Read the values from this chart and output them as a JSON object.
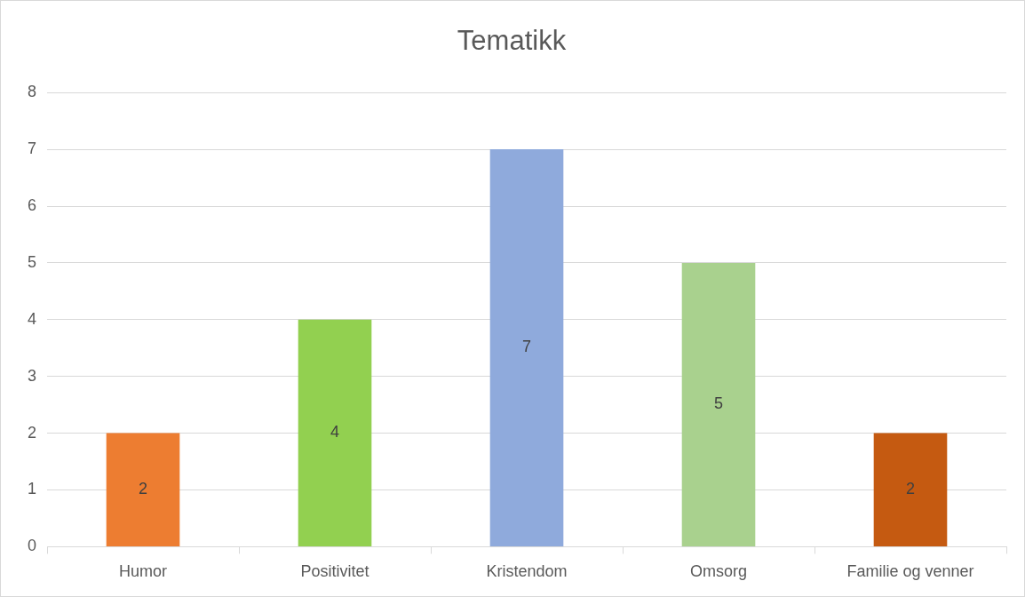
{
  "chart_data": {
    "type": "bar",
    "title": "Tematikk",
    "categories": [
      "Humor",
      "Positivitet",
      "Kristendom",
      "Omsorg",
      "Familie og venner"
    ],
    "values": [
      2,
      4,
      7,
      5,
      2
    ],
    "colors": [
      "#ed7d31",
      "#92d050",
      "#8faadc",
      "#a9d18e",
      "#c55a11"
    ],
    "ylim": [
      0,
      8
    ],
    "yticks": [
      0,
      1,
      2,
      3,
      4,
      5,
      6,
      7,
      8
    ],
    "grid": "y",
    "data_labels": true,
    "legend": false
  }
}
